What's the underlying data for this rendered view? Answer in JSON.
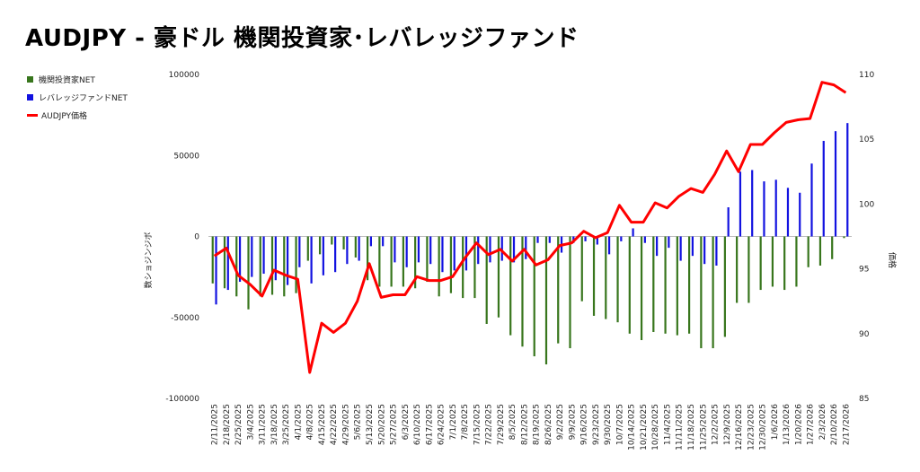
{
  "chart_data": {
    "type": "bar",
    "title": "AUDJPY - 豪ドル 機関投資家･レバレッジファンド",
    "ylabel": "数ショジンジボ",
    "y2label": "価格",
    "ylim": [
      -100000,
      100000
    ],
    "y2lim": [
      85,
      110
    ],
    "yticks": [
      "100000",
      "50000",
      "0",
      "-50000",
      "-100000"
    ],
    "y2ticks": [
      "110",
      "105",
      "100",
      "95",
      "90",
      "85"
    ],
    "legend_position": "left",
    "categories": [
      "2/11/2025",
      "2/18/2025",
      "2/25/2025",
      "3/4/2025",
      "3/11/2025",
      "3/18/2025",
      "3/25/2025",
      "4/1/2025",
      "4/8/2025",
      "4/15/2025",
      "4/22/2025",
      "4/29/2025",
      "5/6/2025",
      "5/13/2025",
      "5/20/2025",
      "5/27/2025",
      "6/3/2025",
      "6/10/2025",
      "6/17/2025",
      "6/24/2025",
      "7/1/2025",
      "7/8/2025",
      "7/15/2025",
      "7/22/2025",
      "7/29/2025",
      "8/5/2025",
      "8/12/2025",
      "8/19/2025",
      "8/26/2025",
      "9/2/2025",
      "9/9/2025",
      "9/16/2025",
      "9/23/2025",
      "9/30/2025",
      "10/7/2025",
      "10/14/2025",
      "10/21/2025",
      "10/28/2025",
      "11/4/2025",
      "11/11/2025",
      "11/18/2025",
      "11/25/2025",
      "12/2/2025",
      "12/9/2025",
      "12/16/2025",
      "12/23/2025",
      "12/30/2025",
      "1/6/2026",
      "1/13/2026",
      "1/20/2026",
      "1/27/2026",
      "2/3/2026",
      "2/10/2026",
      "2/17/2026"
    ],
    "series": [
      {
        "name": "機関投資家NET",
        "kind": "bar",
        "color": "#38761d",
        "values": [
          -29000,
          -32000,
          -37000,
          -45000,
          -37000,
          -36000,
          -37000,
          -35000,
          -15000,
          -11000,
          -5000,
          -8000,
          -13000,
          -27000,
          -31000,
          -31000,
          -31000,
          -32000,
          -28000,
          -37000,
          -35000,
          -38000,
          -38000,
          -54000,
          -50000,
          -61000,
          -68000,
          -74000,
          -79000,
          -66000,
          -69000,
          -40000,
          -49000,
          -51000,
          -53000,
          -60000,
          -64000,
          -59000,
          -60000,
          -61000,
          -60000,
          -69000,
          -69000,
          -62000,
          -41000,
          -41000,
          -33000,
          -31000,
          -33000,
          -31000,
          -19000,
          -18000,
          -14000,
          -1000
        ]
      },
      {
        "name": "レバレッジファンドNET",
        "kind": "bar",
        "color": "#1212e0",
        "values": [
          -42000,
          -33000,
          -28000,
          -25000,
          -23000,
          -27000,
          -30000,
          -19000,
          -29000,
          -24000,
          -22000,
          -17000,
          -15000,
          -6000,
          -6000,
          -16000,
          -19000,
          -16000,
          -17000,
          -22000,
          -21000,
          -21000,
          -17000,
          -16000,
          -15000,
          -16000,
          -14000,
          -4000,
          -4000,
          -10000,
          -4000,
          -3000,
          -5000,
          -11000,
          -3000,
          5000,
          -4000,
          -12000,
          -7000,
          -15000,
          -12000,
          -17000,
          -18000,
          18000,
          40000,
          41000,
          34000,
          35000,
          30000,
          27000,
          45000,
          59000,
          65000,
          70000
        ]
      },
      {
        "name": "AUDJPY価格",
        "kind": "line",
        "color": "#ff0000",
        "values": [
          96.0,
          96.6,
          94.5,
          93.8,
          92.9,
          94.9,
          94.5,
          94.2,
          87.0,
          90.8,
          90.1,
          90.8,
          92.5,
          95.4,
          92.8,
          93.0,
          93.0,
          94.4,
          94.1,
          94.1,
          94.4,
          95.8,
          97.0,
          96.1,
          96.5,
          95.6,
          96.5,
          95.3,
          95.7,
          96.8,
          97.0,
          97.9,
          97.4,
          97.8,
          99.9,
          98.6,
          98.6,
          100.1,
          99.7,
          100.6,
          101.2,
          100.9,
          102.3,
          104.1,
          102.5,
          104.6,
          104.6,
          105.5,
          106.3,
          106.5,
          106.6,
          109.4,
          109.2,
          108.6
        ]
      }
    ]
  }
}
